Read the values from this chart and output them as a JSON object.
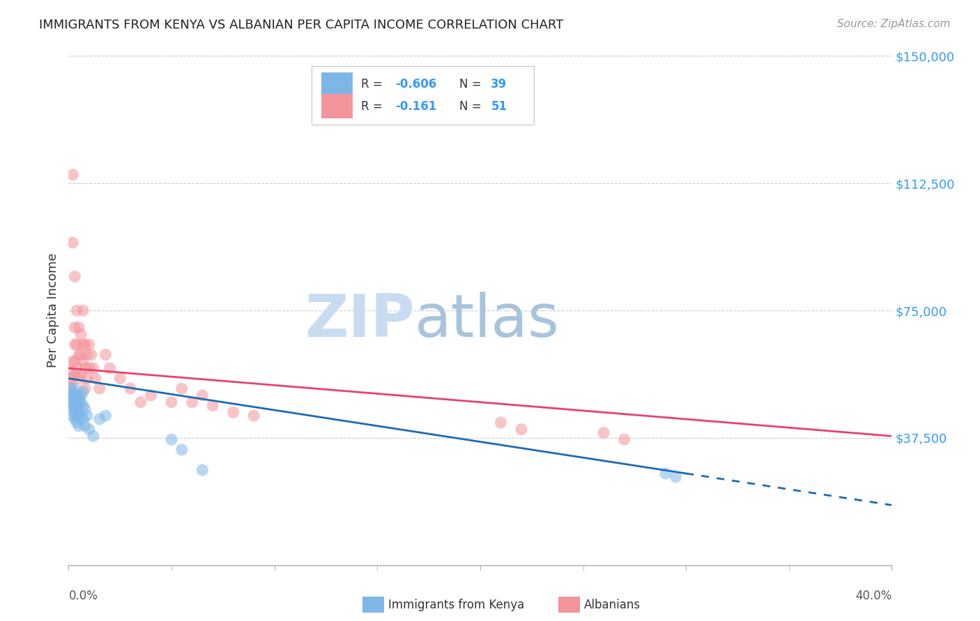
{
  "title": "IMMIGRANTS FROM KENYA VS ALBANIAN PER CAPITA INCOME CORRELATION CHART",
  "source": "Source: ZipAtlas.com",
  "ylabel": "Per Capita Income",
  "yticks": [
    0,
    37500,
    75000,
    112500,
    150000
  ],
  "ytick_labels": [
    "",
    "$37,500",
    "$75,000",
    "$112,500",
    "$150,000"
  ],
  "xmin": 0.0,
  "xmax": 0.4,
  "ymin": 0,
  "ymax": 150000,
  "legend_r_kenya": "-0.606",
  "legend_n_kenya": "39",
  "legend_r_albanian": "-0.161",
  "legend_n_albanian": "51",
  "color_kenya": "#7EB6E8",
  "color_albanian": "#F4949C",
  "color_line_kenya": "#1A6BB5",
  "color_line_albanian": "#E84070",
  "color_axis_labels": "#3399FF",
  "background_color": "#FFFFFF",
  "kenya_x": [
    0.001,
    0.001,
    0.001,
    0.002,
    0.002,
    0.002,
    0.002,
    0.002,
    0.003,
    0.003,
    0.003,
    0.003,
    0.003,
    0.004,
    0.004,
    0.004,
    0.004,
    0.005,
    0.005,
    0.005,
    0.005,
    0.006,
    0.006,
    0.006,
    0.007,
    0.007,
    0.007,
    0.008,
    0.008,
    0.009,
    0.01,
    0.012,
    0.015,
    0.018,
    0.05,
    0.055,
    0.065,
    0.29,
    0.295
  ],
  "kenya_y": [
    52000,
    50000,
    48000,
    51000,
    49000,
    47000,
    46000,
    44000,
    52000,
    49000,
    47000,
    45000,
    43000,
    50000,
    48000,
    44000,
    42000,
    49000,
    47000,
    45000,
    41000,
    50000,
    48000,
    44000,
    51000,
    47000,
    43000,
    46000,
    41000,
    44000,
    40000,
    38000,
    43000,
    44000,
    37000,
    34000,
    28000,
    27000,
    26000
  ],
  "albanian_x": [
    0.001,
    0.001,
    0.001,
    0.002,
    0.002,
    0.002,
    0.003,
    0.003,
    0.003,
    0.003,
    0.003,
    0.004,
    0.004,
    0.004,
    0.005,
    0.005,
    0.005,
    0.006,
    0.006,
    0.006,
    0.007,
    0.007,
    0.007,
    0.008,
    0.008,
    0.008,
    0.009,
    0.009,
    0.01,
    0.01,
    0.011,
    0.012,
    0.013,
    0.015,
    0.018,
    0.02,
    0.025,
    0.03,
    0.035,
    0.04,
    0.05,
    0.055,
    0.06,
    0.065,
    0.07,
    0.08,
    0.09,
    0.21,
    0.22,
    0.26,
    0.27
  ],
  "albanian_y": [
    57000,
    55000,
    53000,
    95000,
    115000,
    60000,
    85000,
    70000,
    65000,
    60000,
    56000,
    75000,
    65000,
    58000,
    70000,
    62000,
    55000,
    68000,
    62000,
    56000,
    75000,
    65000,
    60000,
    65000,
    58000,
    52000,
    62000,
    55000,
    65000,
    58000,
    62000,
    58000,
    55000,
    52000,
    62000,
    58000,
    55000,
    52000,
    48000,
    50000,
    48000,
    52000,
    48000,
    50000,
    47000,
    45000,
    44000,
    42000,
    40000,
    39000,
    37000
  ],
  "watermark_zip_color": "#C8DCF0",
  "watermark_atlas_color": "#A0B8CC"
}
